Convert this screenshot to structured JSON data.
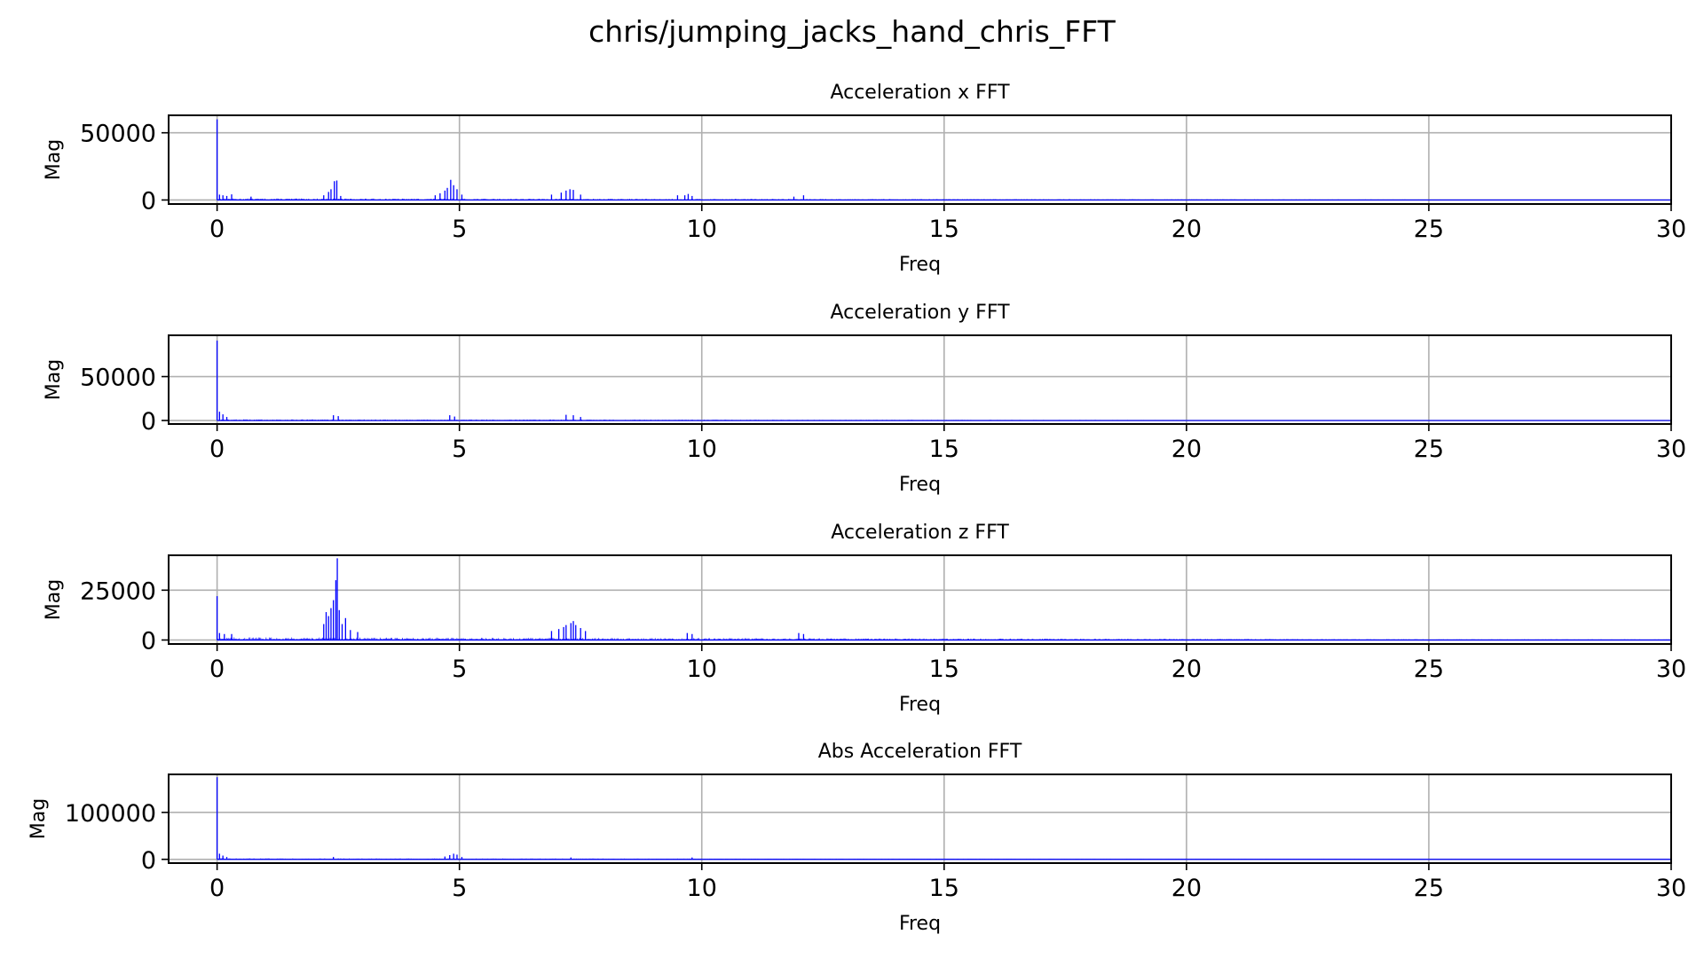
{
  "figure_title": "chris/jumping_jacks_hand_chris_FFT",
  "colors": {
    "series": "#0000ff",
    "grid": "#b0b0b0",
    "axes": "#000000"
  },
  "chart_data": [
    {
      "type": "line",
      "title": "Acceleration x FFT",
      "xlabel": "Freq",
      "ylabel": "Mag",
      "xlim": [
        -1,
        30
      ],
      "ylim": [
        -3000,
        63000
      ],
      "xticks": [
        0,
        5,
        10,
        15,
        20,
        25,
        30
      ],
      "yticks": [
        0,
        50000
      ],
      "grid": true,
      "series": [
        {
          "baseline": 800,
          "points": [
            [
              0,
              60000
            ],
            [
              0.05,
              4000
            ],
            [
              0.12,
              3500
            ],
            [
              0.2,
              3000
            ],
            [
              0.3,
              4200
            ],
            [
              0.7,
              2500
            ],
            [
              2.2,
              3500
            ],
            [
              2.3,
              6000
            ],
            [
              2.35,
              8000
            ],
            [
              2.42,
              14000
            ],
            [
              2.47,
              14500
            ],
            [
              2.55,
              3000
            ],
            [
              4.5,
              3500
            ],
            [
              4.6,
              5000
            ],
            [
              4.7,
              7000
            ],
            [
              4.75,
              9000
            ],
            [
              4.82,
              15000
            ],
            [
              4.88,
              11000
            ],
            [
              4.95,
              8000
            ],
            [
              5.05,
              4000
            ],
            [
              6.9,
              4000
            ],
            [
              7.1,
              5500
            ],
            [
              7.2,
              7000
            ],
            [
              7.28,
              8000
            ],
            [
              7.35,
              7500
            ],
            [
              7.5,
              4000
            ],
            [
              9.5,
              3500
            ],
            [
              9.65,
              3500
            ],
            [
              9.72,
              4500
            ],
            [
              9.8,
              3000
            ],
            [
              11.9,
              2500
            ],
            [
              12.1,
              3500
            ]
          ]
        }
      ]
    },
    {
      "type": "line",
      "title": "Acceleration y FFT",
      "xlabel": "Freq",
      "ylabel": "Mag",
      "xlim": [
        -1,
        30
      ],
      "ylim": [
        -4000,
        97000
      ],
      "xticks": [
        0,
        5,
        10,
        15,
        20,
        25,
        30
      ],
      "yticks": [
        0,
        50000
      ],
      "grid": true,
      "series": [
        {
          "baseline": 900,
          "points": [
            [
              0,
              91000
            ],
            [
              0.05,
              10000
            ],
            [
              0.12,
              7000
            ],
            [
              0.2,
              4000
            ],
            [
              2.4,
              6000
            ],
            [
              2.5,
              5000
            ],
            [
              4.8,
              6000
            ],
            [
              4.9,
              4500
            ],
            [
              7.2,
              6500
            ],
            [
              7.35,
              6000
            ],
            [
              7.5,
              4000
            ]
          ]
        }
      ]
    },
    {
      "type": "line",
      "title": "Acceleration z FFT",
      "xlabel": "Freq",
      "ylabel": "Mag",
      "xlim": [
        -1,
        30
      ],
      "ylim": [
        -2000,
        42500
      ],
      "xticks": [
        0,
        5,
        10,
        15,
        20,
        25,
        30
      ],
      "yticks": [
        0,
        25000
      ],
      "grid": true,
      "series": [
        {
          "baseline": 900,
          "points": [
            [
              0,
              22000
            ],
            [
              0.05,
              3500
            ],
            [
              0.15,
              3000
            ],
            [
              0.3,
              3000
            ],
            [
              2.2,
              8000
            ],
            [
              2.25,
              14000
            ],
            [
              2.3,
              12000
            ],
            [
              2.35,
              16000
            ],
            [
              2.4,
              20000
            ],
            [
              2.45,
              30000
            ],
            [
              2.48,
              41000
            ],
            [
              2.52,
              15000
            ],
            [
              2.58,
              8000
            ],
            [
              2.65,
              11000
            ],
            [
              2.75,
              5000
            ],
            [
              2.9,
              4000
            ],
            [
              6.9,
              4500
            ],
            [
              7.05,
              5500
            ],
            [
              7.15,
              6500
            ],
            [
              7.2,
              7500
            ],
            [
              7.3,
              8500
            ],
            [
              7.35,
              9500
            ],
            [
              7.4,
              7500
            ],
            [
              7.5,
              6000
            ],
            [
              7.6,
              4500
            ],
            [
              9.7,
              3500
            ],
            [
              9.8,
              3000
            ],
            [
              12.0,
              3500
            ],
            [
              12.1,
              3000
            ]
          ]
        }
      ]
    },
    {
      "type": "line",
      "title": "Abs Acceleration FFT",
      "xlabel": "Freq",
      "ylabel": "Mag",
      "xlim": [
        -1,
        30
      ],
      "ylim": [
        -8000,
        181000
      ],
      "xticks": [
        0,
        5,
        10,
        15,
        20,
        25,
        30
      ],
      "yticks": [
        0,
        100000
      ],
      "grid": true,
      "series": [
        {
          "baseline": 1500,
          "points": [
            [
              0,
              175000
            ],
            [
              0.05,
              12000
            ],
            [
              0.12,
              8000
            ],
            [
              0.2,
              5000
            ],
            [
              2.4,
              5000
            ],
            [
              4.7,
              6000
            ],
            [
              4.8,
              9000
            ],
            [
              4.88,
              12000
            ],
            [
              4.95,
              10000
            ],
            [
              5.05,
              5000
            ],
            [
              7.3,
              4000
            ],
            [
              9.8,
              4000
            ]
          ]
        }
      ]
    }
  ]
}
